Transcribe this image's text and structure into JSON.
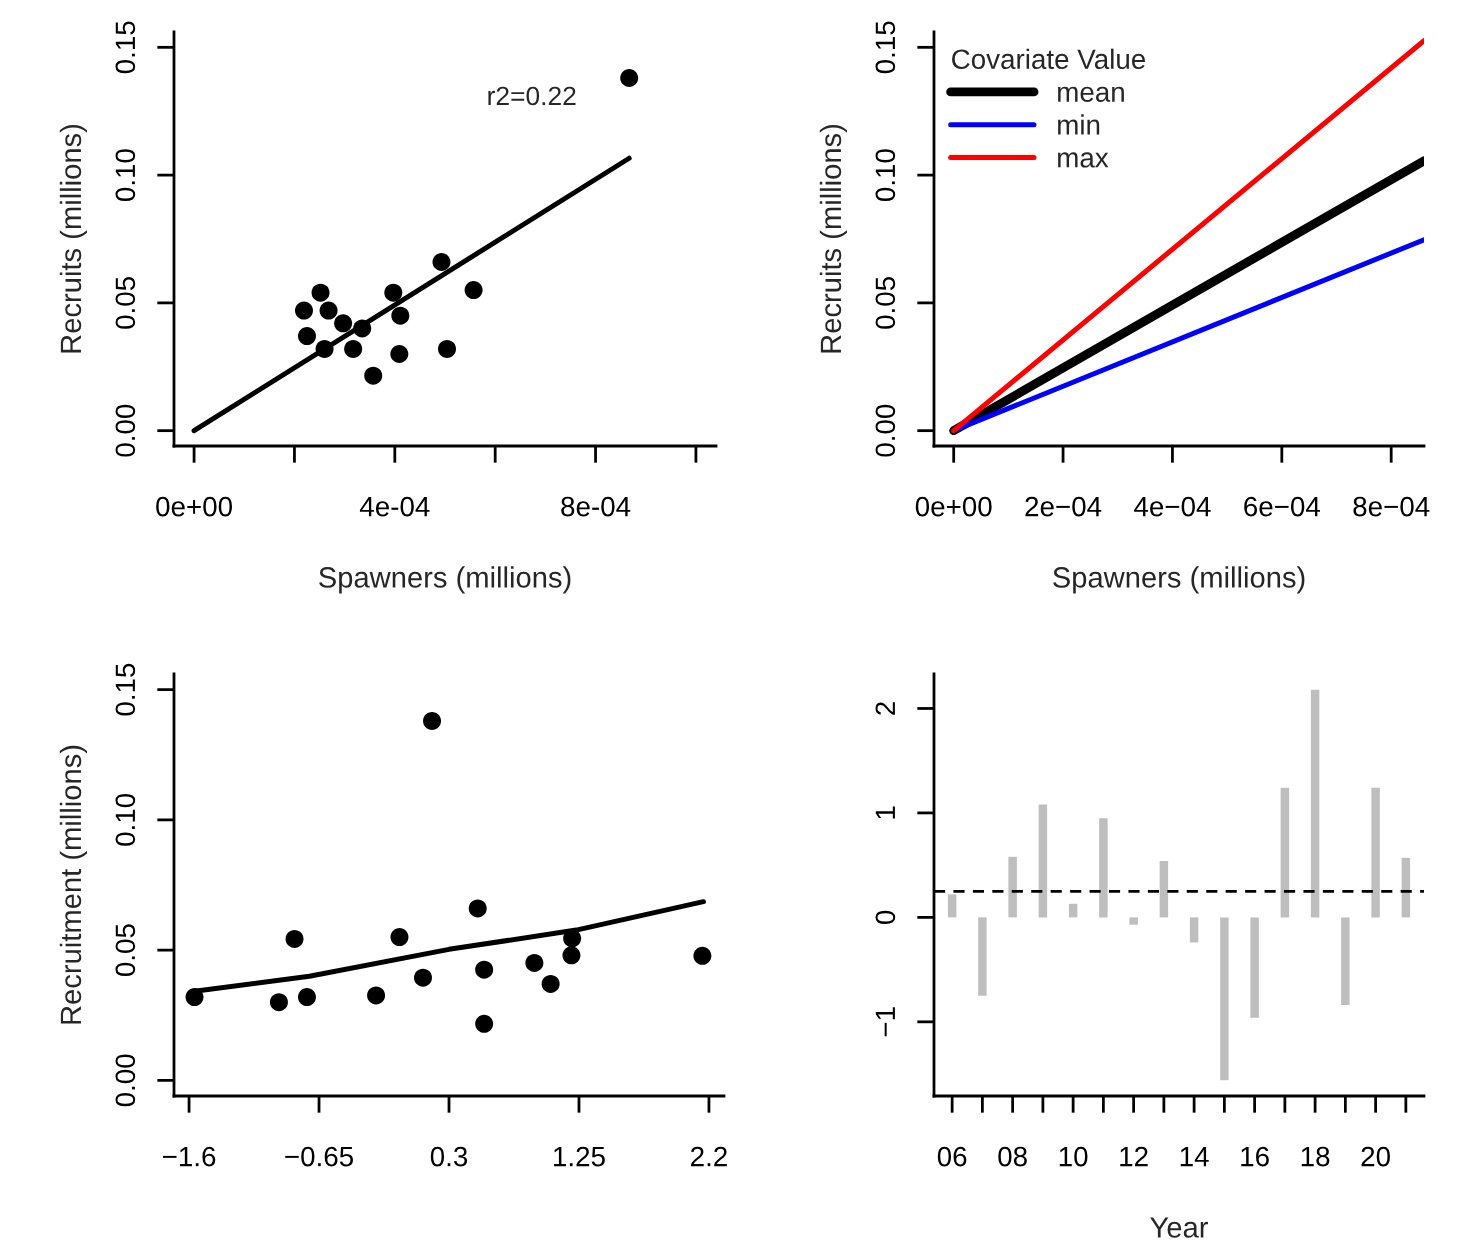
{
  "chart_data": [
    {
      "type": "scatter",
      "xlabel": "Spawners (millions)",
      "ylabel": "Recruits (millions)",
      "xlim": [
        -4e-05,
        0.00104
      ],
      "ylim": [
        -0.006,
        0.156
      ],
      "xticks": [
        {
          "value": 0,
          "label": "0e+00"
        },
        {
          "value": 0.0002,
          "label": null
        },
        {
          "value": 0.0004,
          "label": "4e-04"
        },
        {
          "value": 0.0006,
          "label": null
        },
        {
          "value": 0.0008,
          "label": "8e-04"
        },
        {
          "value": 0.001,
          "label": null
        }
      ],
      "yticks": [
        {
          "value": 0,
          "label": "0.00"
        },
        {
          "value": 0.05,
          "label": "0.05"
        },
        {
          "value": 0.1,
          "label": "0.10"
        },
        {
          "value": 0.15,
          "label": "0.15"
        }
      ],
      "annotations": [
        "r2=0.22"
      ],
      "series": [
        {
          "type": "scatter",
          "marker": "circle",
          "color": "#000000",
          "x": [
            0.000219,
            0.000225,
            0.000252,
            0.000268,
            0.00026,
            0.000297,
            0.000317,
            0.000335,
            0.000357,
            0.000397,
            0.000411,
            0.000409,
            0.000493,
            0.000504,
            0.000557,
            0.000867
          ],
          "values": [
            0.047,
            0.037,
            0.054,
            0.047,
            0.032,
            0.042,
            0.032,
            0.04,
            0.0215,
            0.054,
            0.045,
            0.03,
            0.066,
            0.032,
            0.055,
            0.138
          ]
        },
        {
          "type": "line",
          "color": "#000000",
          "x": [
            0,
            0.000867
          ],
          "values": [
            0,
            0.1066
          ]
        }
      ]
    },
    {
      "type": "line",
      "xlabel": "Spawners (millions)",
      "ylabel": "Recruits (millions)",
      "legend": "top left",
      "legend_title": "Covariate Value",
      "xlim": [
        -3.6e-05,
        0.00086
      ],
      "ylim": [
        -0.006,
        0.156
      ],
      "xticks": [
        {
          "value": 0,
          "label": "0e+00"
        },
        {
          "value": 0.0002,
          "label": "2e−04"
        },
        {
          "value": 0.0004,
          "label": "4e−04"
        },
        {
          "value": 0.0006,
          "label": "6e−04"
        },
        {
          "value": 0.0008,
          "label": "8e−04"
        }
      ],
      "yticks": [
        {
          "value": 0,
          "label": "0.00"
        },
        {
          "value": 0.05,
          "label": "0.05"
        },
        {
          "value": 0.1,
          "label": "0.10"
        },
        {
          "value": 0.15,
          "label": "0.15"
        }
      ],
      "series": [
        {
          "name": "mean",
          "color": "#000000",
          "x": [
            0,
            0.00086
          ],
          "values": [
            0,
            0.1056
          ]
        },
        {
          "name": "min",
          "color": "#0000ff",
          "x": [
            0,
            0.00086
          ],
          "values": [
            0,
            0.0747
          ]
        },
        {
          "name": "max",
          "color": "#ff0000",
          "x": [
            0,
            0.00086
          ],
          "values": [
            0,
            0.1526
          ]
        }
      ]
    },
    {
      "type": "scatter",
      "ylabel": "Recruitment (millions)",
      "xlim": [
        -1.71,
        2.31
      ],
      "ylim": [
        -0.006,
        0.156
      ],
      "xticks": [
        {
          "value": -1.6,
          "label": "−1.6"
        },
        {
          "value": -0.65,
          "label": "−0.65"
        },
        {
          "value": 0.3,
          "label": "0.3"
        },
        {
          "value": 1.25,
          "label": "1.25"
        },
        {
          "value": 2.2,
          "label": "2.2"
        }
      ],
      "yticks": [
        {
          "value": 0,
          "label": "0.00"
        },
        {
          "value": 0.05,
          "label": "0.05"
        },
        {
          "value": 0.1,
          "label": "0.10"
        },
        {
          "value": 0.15,
          "label": "0.15"
        }
      ],
      "series": [
        {
          "type": "scatter",
          "marker": "circle",
          "color": "#000000",
          "x": [
            -1.56,
            -0.943,
            -0.829,
            -0.738,
            -0.233,
            -0.062,
            0.11,
            0.176,
            0.51,
            0.557,
            0.557,
            0.924,
            1.043,
            1.195,
            1.2,
            2.152
          ],
          "values": [
            0.032,
            0.03,
            0.0543,
            0.032,
            0.0326,
            0.055,
            0.0394,
            0.138,
            0.066,
            0.0425,
            0.0217,
            0.0451,
            0.037,
            0.048,
            0.0545,
            0.0478
          ]
        },
        {
          "type": "line",
          "color": "#000000",
          "x": [
            -1.56,
            -0.72,
            0.3,
            1.23,
            2.16
          ],
          "values": [
            0.0342,
            0.04,
            0.0503,
            0.0577,
            0.0686
          ]
        }
      ]
    },
    {
      "type": "bar",
      "xlabel": "Year",
      "xlim": [
        2005.4,
        2021.6
      ],
      "ylim": [
        -1.71,
        2.33
      ],
      "xticks": [
        {
          "value": 2006,
          "label": "06"
        },
        {
          "value": 2007,
          "label": null
        },
        {
          "value": 2008,
          "label": "08"
        },
        {
          "value": 2009,
          "label": null
        },
        {
          "value": 2010,
          "label": "10"
        },
        {
          "value": 2011,
          "label": null
        },
        {
          "value": 2012,
          "label": "12"
        },
        {
          "value": 2013,
          "label": null
        },
        {
          "value": 2014,
          "label": "14"
        },
        {
          "value": 2015,
          "label": null
        },
        {
          "value": 2016,
          "label": "16"
        },
        {
          "value": 2017,
          "label": null
        },
        {
          "value": 2018,
          "label": "18"
        },
        {
          "value": 2019,
          "label": null
        },
        {
          "value": 2020,
          "label": "20"
        },
        {
          "value": 2021,
          "label": null
        }
      ],
      "yticks": [
        {
          "value": -1,
          "label": "−1"
        },
        0,
        1,
        2
      ],
      "ref_lines": [
        {
          "axis": "y",
          "value": 0.25,
          "color": "#000000",
          "line_style": "dashed"
        }
      ],
      "series": [
        {
          "color": "#bebebe",
          "x": [
            2006,
            2007,
            2008,
            2009,
            2010,
            2011,
            2012,
            2013,
            2014,
            2015,
            2016,
            2017,
            2018,
            2019,
            2020,
            2021
          ],
          "values": [
            0.22,
            -0.75,
            0.58,
            1.08,
            0.13,
            0.95,
            -0.07,
            0.54,
            -0.24,
            -1.56,
            -0.96,
            1.24,
            2.18,
            -0.84,
            1.24,
            0.57
          ]
        }
      ]
    }
  ]
}
